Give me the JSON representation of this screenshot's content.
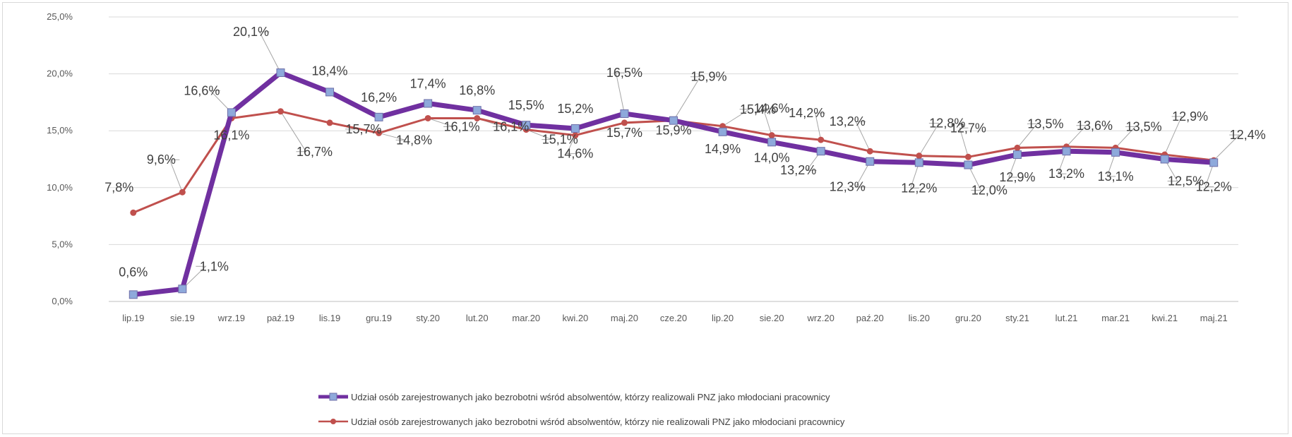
{
  "chart_data": {
    "type": "line",
    "title": "",
    "xlabel": "",
    "ylabel": "",
    "ylim": [
      0,
      25
    ],
    "y_ticks": [
      "0,0%",
      "5,0%",
      "10,0%",
      "15,0%",
      "20,0%",
      "25,0%"
    ],
    "grid": "horizontal",
    "legend_position": "bottom",
    "categories": [
      "lip.19",
      "sie.19",
      "wrz.19",
      "paź.19",
      "lis.19",
      "gru.19",
      "sty.20",
      "lut.20",
      "mar.20",
      "kwi.20",
      "maj.20",
      "cze.20",
      "lip.20",
      "sie.20",
      "wrz.20",
      "paź.20",
      "lis.20",
      "gru.20",
      "sty.21",
      "lut.21",
      "mar.21",
      "kwi.21",
      "maj.21"
    ],
    "series": [
      {
        "name": "Udział osób zarejestrowanych jako bezrobotni wśród absolwentów, którzy realizowali PNZ jako młodociani pracownicy",
        "color": "#7030a0",
        "marker_color": "#8ea9db",
        "values": [
          0.6,
          1.1,
          16.6,
          20.1,
          18.4,
          16.2,
          17.4,
          16.8,
          15.5,
          15.2,
          16.5,
          15.9,
          14.9,
          14.0,
          13.2,
          12.3,
          12.2,
          12.0,
          12.9,
          13.2,
          13.1,
          12.5,
          12.2
        ],
        "labels": [
          "0,6%",
          "1,1%",
          "16,6%",
          "20,1%",
          "18,4%",
          "16,2%",
          "17,4%",
          "16,8%",
          "15,5%",
          "15,2%",
          "16,5%",
          "15,9%",
          "14,9%",
          "14,0%",
          "13,2%",
          "12,3%",
          "12,2%",
          "12,0%",
          "12,9%",
          "13,2%",
          "13,1%",
          "12,5%",
          "12,2%"
        ]
      },
      {
        "name": "Udział osób zarejestrowanych jako bezrobotni wśród absolwentów, którzy nie realizowali PNZ jako młodociani pracownicy",
        "color": "#c0504d",
        "marker_color": "#c0504d",
        "values": [
          7.8,
          9.6,
          16.1,
          16.7,
          15.7,
          14.8,
          16.1,
          16.1,
          15.1,
          14.6,
          15.7,
          15.9,
          15.4,
          14.6,
          14.2,
          13.2,
          12.8,
          12.7,
          13.5,
          13.6,
          13.5,
          12.9,
          12.4
        ],
        "labels": [
          "7,8%",
          "9,6%",
          "16,1%",
          "16,7%",
          "15,7%",
          "14,8%",
          "16,1%",
          "16,1%",
          "15,1%",
          "14,6%",
          "15,7%",
          "15,9%",
          "15,4%",
          "14,6%",
          "14,2%",
          "13,2%",
          "12,8%",
          "12,7%",
          "13,5%",
          "13,6%",
          "13,5%",
          "12,9%",
          "12,4%"
        ]
      }
    ]
  }
}
